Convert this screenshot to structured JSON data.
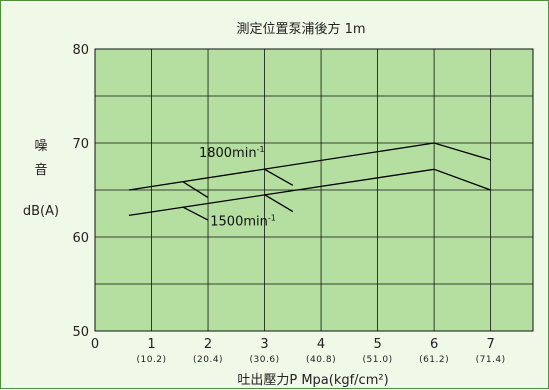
{
  "chart_data": {
    "type": "line",
    "title": "測定位置泵浦後方 1m",
    "xlabel": "吐出壓力P Mpa(kgf/cm²)",
    "ylabel_chars": [
      "噪",
      "音"
    ],
    "ylabel_unit": "dB(A)",
    "xlim": [
      0,
      7.75
    ],
    "ylim": [
      50,
      80
    ],
    "x_ticks": [
      0,
      1,
      2,
      3,
      4,
      5,
      6,
      7
    ],
    "x_tick_labels": [
      "0",
      "1",
      "2",
      "3",
      "4",
      "5",
      "6",
      "7"
    ],
    "x_sub_labels": [
      "(10.2)",
      "(20.4)",
      "(30.6)",
      "(40.8)",
      "(51.0)",
      "(61.2)",
      "(71.4)"
    ],
    "y_ticks": [
      50,
      60,
      70,
      80
    ],
    "y_tick_labels": [
      "50",
      "60",
      "70",
      "80"
    ],
    "grid": true,
    "series": [
      {
        "name": "1800min",
        "name_sup": "-1",
        "x": [
          0.6,
          6.0,
          7.0
        ],
        "y": [
          65.0,
          70.0,
          68.2
        ],
        "ticks": [
          {
            "from": [
              1.55,
              65.9
            ],
            "to": [
              2.0,
              64.2
            ]
          },
          {
            "from": [
              3.0,
              67.2
            ],
            "to": [
              3.5,
              65.5
            ]
          }
        ]
      },
      {
        "name": "1500min",
        "name_sup": "-1",
        "x": [
          0.6,
          6.0,
          7.0
        ],
        "y": [
          62.3,
          67.2,
          65.0
        ],
        "ticks": [
          {
            "from": [
              1.55,
              63.2
            ],
            "to": [
              2.0,
              61.8
            ]
          },
          {
            "from": [
              3.0,
              64.5
            ],
            "to": [
              3.5,
              62.7
            ]
          }
        ]
      }
    ]
  },
  "colors": {
    "plot_fill": "#b5dfa0",
    "grid": "#111111",
    "line": "#000000",
    "frame_bg": "#f0f9e8",
    "frame_border": "#4f8f3a"
  }
}
